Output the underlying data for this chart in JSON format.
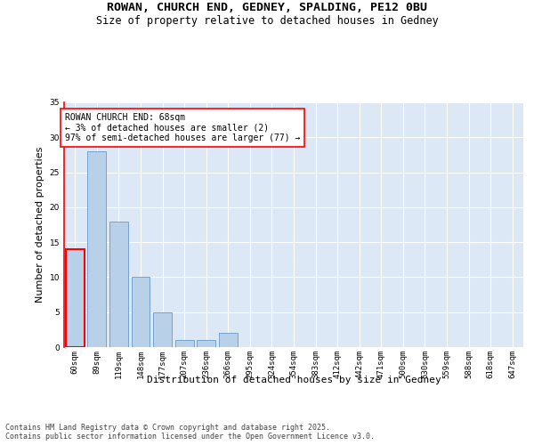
{
  "title_line1": "ROWAN, CHURCH END, GEDNEY, SPALDING, PE12 0BU",
  "title_line2": "Size of property relative to detached houses in Gedney",
  "xlabel": "Distribution of detached houses by size in Gedney",
  "ylabel": "Number of detached properties",
  "bar_values": [
    14,
    28,
    18,
    10,
    5,
    1,
    1,
    2,
    0,
    0,
    0,
    0,
    0,
    0,
    0,
    0,
    0,
    0,
    0,
    0,
    0
  ],
  "categories": [
    "60sqm",
    "89sqm",
    "119sqm",
    "148sqm",
    "177sqm",
    "207sqm",
    "236sqm",
    "266sqm",
    "295sqm",
    "324sqm",
    "354sqm",
    "383sqm",
    "412sqm",
    "442sqm",
    "471sqm",
    "500sqm",
    "530sqm",
    "559sqm",
    "588sqm",
    "618sqm",
    "647sqm"
  ],
  "bar_color": "#b8d0e8",
  "bar_edge_color": "#6699cc",
  "highlight_bar_index": 0,
  "highlight_edge_color": "red",
  "annotation_text": "ROWAN CHURCH END: 68sqm\n← 3% of detached houses are smaller (2)\n97% of semi-detached houses are larger (77) →",
  "annotation_box_color": "white",
  "annotation_box_edge_color": "red",
  "ylim": [
    0,
    35
  ],
  "yticks": [
    0,
    5,
    10,
    15,
    20,
    25,
    30,
    35
  ],
  "background_color": "#dce8f5",
  "grid_color": "white",
  "footer_line1": "Contains HM Land Registry data © Crown copyright and database right 2025.",
  "footer_line2": "Contains public sector information licensed under the Open Government Licence v3.0.",
  "title_fontsize": 9.5,
  "subtitle_fontsize": 8.5,
  "axis_label_fontsize": 8,
  "tick_fontsize": 6.5,
  "annotation_fontsize": 7,
  "footer_fontsize": 6
}
